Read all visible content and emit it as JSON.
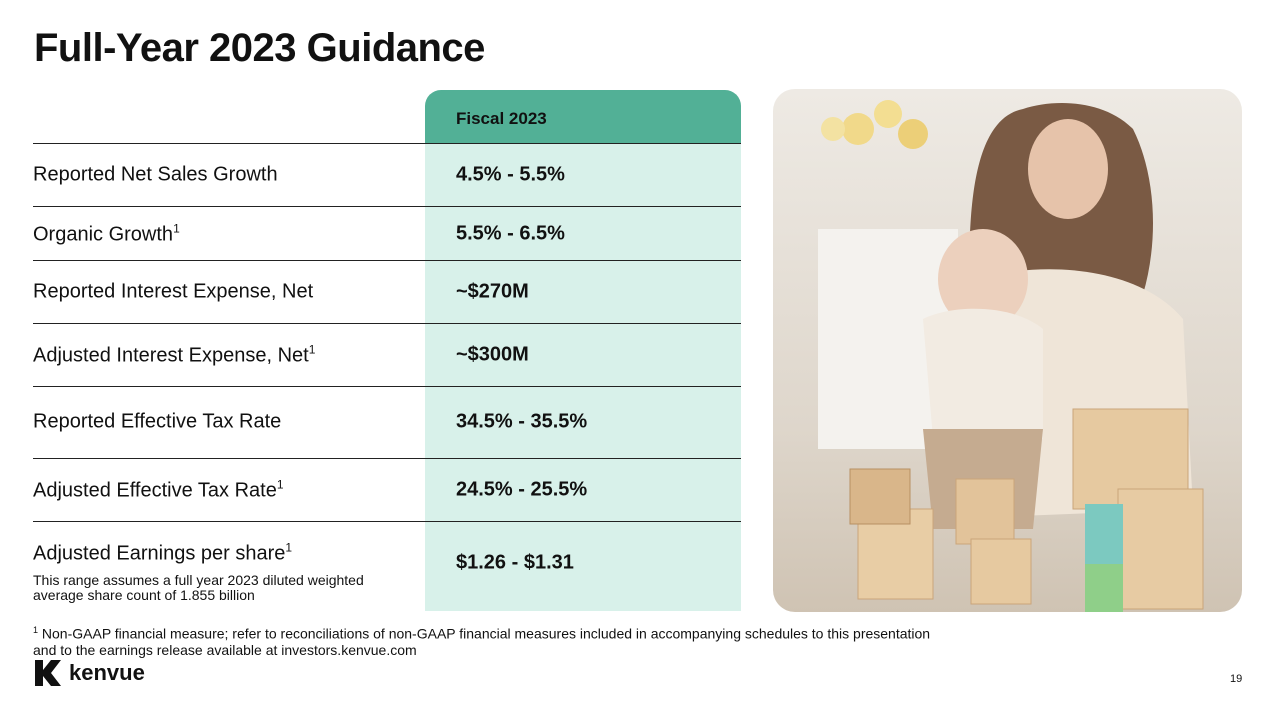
{
  "header": {
    "title": "Full-Year 2023 Guidance"
  },
  "table": {
    "column_header": "Fiscal 2023",
    "rows": [
      {
        "label": "Reported Net Sales Growth",
        "value": "4.5% - 5.5%"
      },
      {
        "label": "Organic Growth",
        "sup": "1",
        "value": "5.5% - 6.5%"
      },
      {
        "label": "Reported Interest Expense, Net",
        "value": "~$270M"
      },
      {
        "label": "Adjusted Interest Expense, Net",
        "sup": "1",
        "value": "~$300M"
      },
      {
        "label": "Reported Effective Tax Rate",
        "value": "34.5% - 35.5%"
      },
      {
        "label": "Adjusted Effective Tax Rate",
        "sup": "1",
        "value": "24.5% - 25.5%"
      },
      {
        "label": "Adjusted Earnings per share",
        "sup": "1",
        "value": "$1.26 - $1.31",
        "note": "This range assumes a full year 2023 diluted weighted average share count of 1.855 billion"
      }
    ]
  },
  "footnote": {
    "marker": "1",
    "lines": [
      "Non-GAAP financial measure; refer to reconciliations of non-GAAP financial measures included in accompanying schedules to this presentation",
      "and to the earnings release available at investors.kenvue.com"
    ]
  },
  "footer": {
    "logo": "kenvue",
    "page_number": "19"
  }
}
